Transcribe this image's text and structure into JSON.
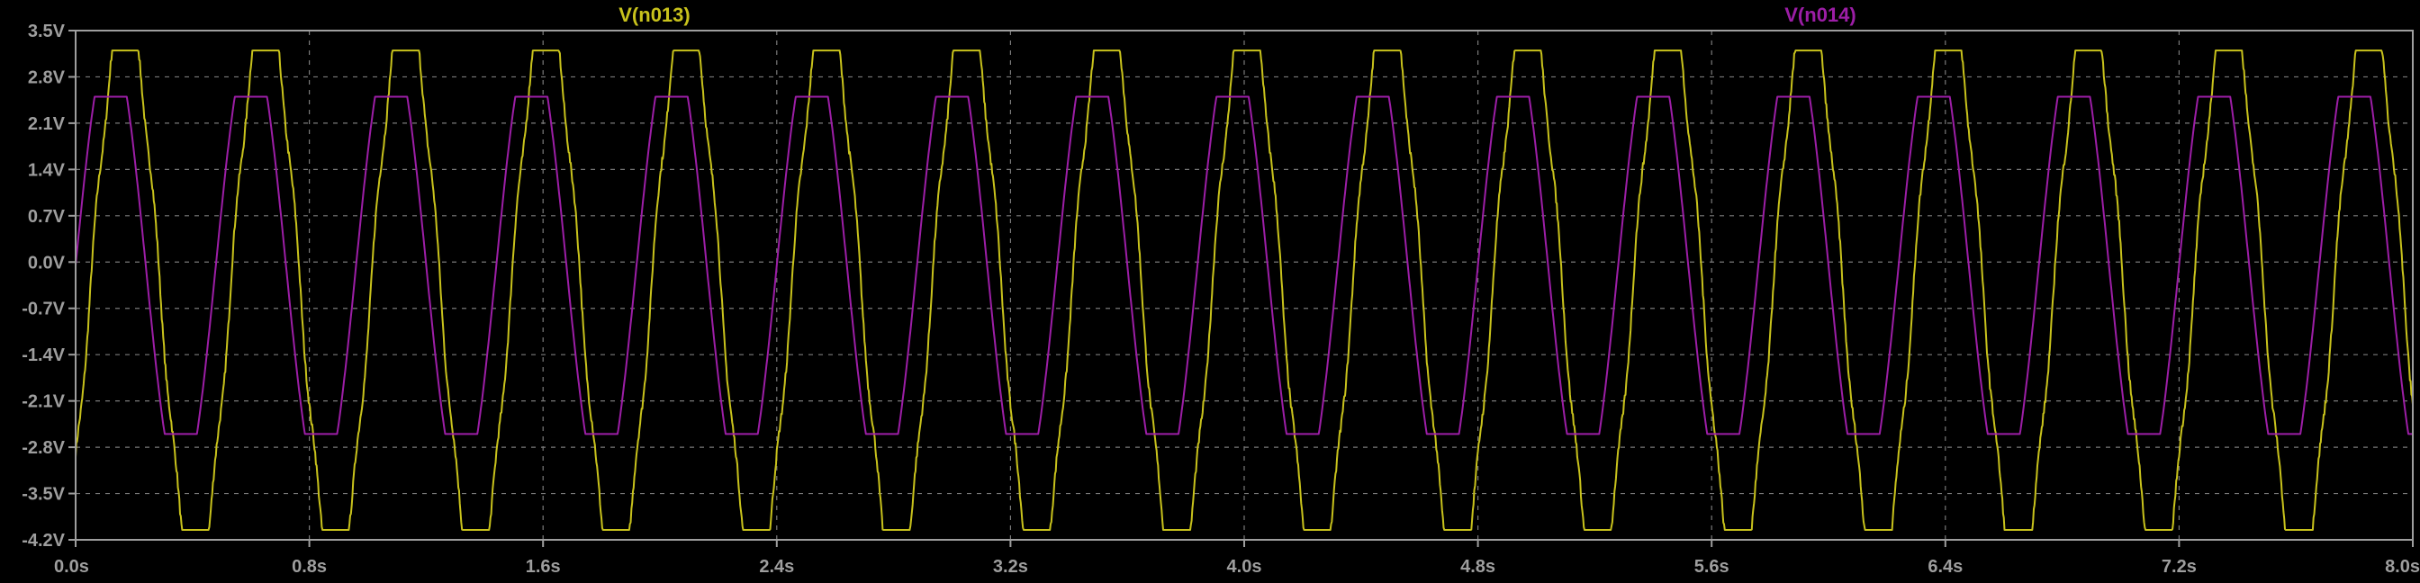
{
  "window": {
    "background": "#000000",
    "frame_color": "#9e9e9e",
    "grid_color": "#7a7a7a"
  },
  "chart_data": {
    "type": "line",
    "title": "",
    "xlabel": "",
    "ylabel": "",
    "xlim": [
      0.0,
      8.0
    ],
    "ylim": [
      -4.2,
      3.5
    ],
    "grid": true,
    "x_ticks": [
      "0.0s",
      "0.8s",
      "1.6s",
      "2.4s",
      "3.2s",
      "4.0s",
      "4.8s",
      "5.6s",
      "6.4s",
      "7.2s",
      "8.0s"
    ],
    "x_tick_values": [
      0.0,
      0.8,
      1.6,
      2.4,
      3.2,
      4.0,
      4.8,
      5.6,
      6.4,
      7.2,
      8.0
    ],
    "y_ticks": [
      "3.5V",
      "2.8V",
      "2.1V",
      "1.4V",
      "0.7V",
      "0.0V",
      "-0.7V",
      "-1.4V",
      "-2.1V",
      "-2.8V",
      "-3.5V",
      "-4.2V"
    ],
    "y_tick_values": [
      3.5,
      2.8,
      2.1,
      1.4,
      0.7,
      0.0,
      -0.7,
      -1.4,
      -2.1,
      -2.8,
      -3.5,
      -4.2
    ],
    "legend_placement": "top",
    "series": [
      {
        "name": "V(n013)",
        "color": "#c8c21c",
        "waveform": "clipped sine with ripple",
        "period": 0.48,
        "phase_offset": 0.05,
        "amplitude": 4.3,
        "offset": -0.45,
        "clip_high": 3.2,
        "clip_low": -4.05,
        "x_start": 0.0,
        "x_end": 8.0
      },
      {
        "name": "V(n014)",
        "color": "#9c1ea6",
        "waveform": "clipped sine",
        "period": 0.48,
        "phase_offset": 0.0,
        "amplitude": 3.4,
        "offset": -0.05,
        "clip_high": 2.5,
        "clip_low": -2.6,
        "x_start": 0.0,
        "x_end": 8.0
      }
    ]
  }
}
